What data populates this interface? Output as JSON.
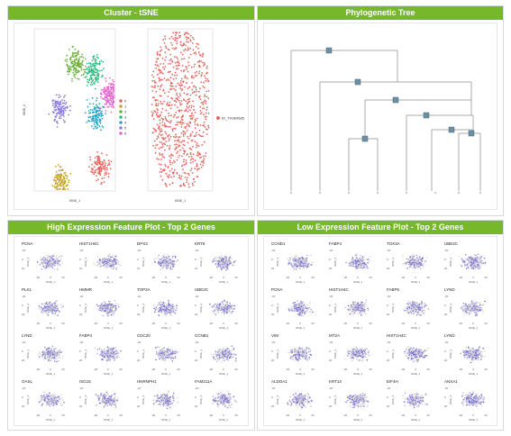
{
  "panels": {
    "cluster": {
      "title": "Cluster - tSNE",
      "xlabel": "tSNE_1",
      "ylabel": "tSNE_2",
      "left_legend": [
        "0",
        "1",
        "2",
        "3",
        "4",
        "5",
        "6"
      ],
      "right_legend": [
        "ID_TH369685"
      ]
    },
    "tree": {
      "title": "Phylogenetic Tree"
    },
    "high": {
      "title": "High Expression Feature Plot - Top 2 Genes",
      "genes": [
        "PCNA",
        "HIST1H4C",
        "DPX3",
        "KRT8",
        "PLK1",
        "HMMR",
        "TOP2A",
        "UBE2C",
        "LYND",
        "FABP4",
        "CDC20",
        "CCNB1",
        "OASL",
        "ISG15",
        "HNRNPH1",
        "FAM211A"
      ]
    },
    "low": {
      "title": "Low Expression Feature Plot - Top 2 Genes",
      "genes": [
        "CCND1",
        "FABP4",
        "TOX3A",
        "UBE2C",
        "PCNA",
        "HIST1H4C",
        "FABP5",
        "LYND",
        "VIM",
        "MT2A",
        "HIST1H4C",
        "LYND",
        "ALDOA1",
        "KRT13",
        "EIF4H",
        "ANXA1"
      ]
    }
  },
  "feature_axes": {
    "xlabel": "tSNE_1",
    "ylabel": "tSNE_2",
    "xticks": [
      "-20",
      "0",
      "20"
    ],
    "yticks": [
      "-20",
      "0",
      "20"
    ]
  },
  "colors": {
    "header_green": "#76b82a",
    "cluster_palette": [
      "#e8665f",
      "#c9a227",
      "#6fb33f",
      "#2fbf86",
      "#2aa6c8",
      "#8e7fe0",
      "#e36ad0"
    ],
    "sample_color": "#e8665f",
    "expr_low": "#d9d9d9",
    "expr_high": "#3f2fd0",
    "tree_node": "#6b8fa3"
  }
}
